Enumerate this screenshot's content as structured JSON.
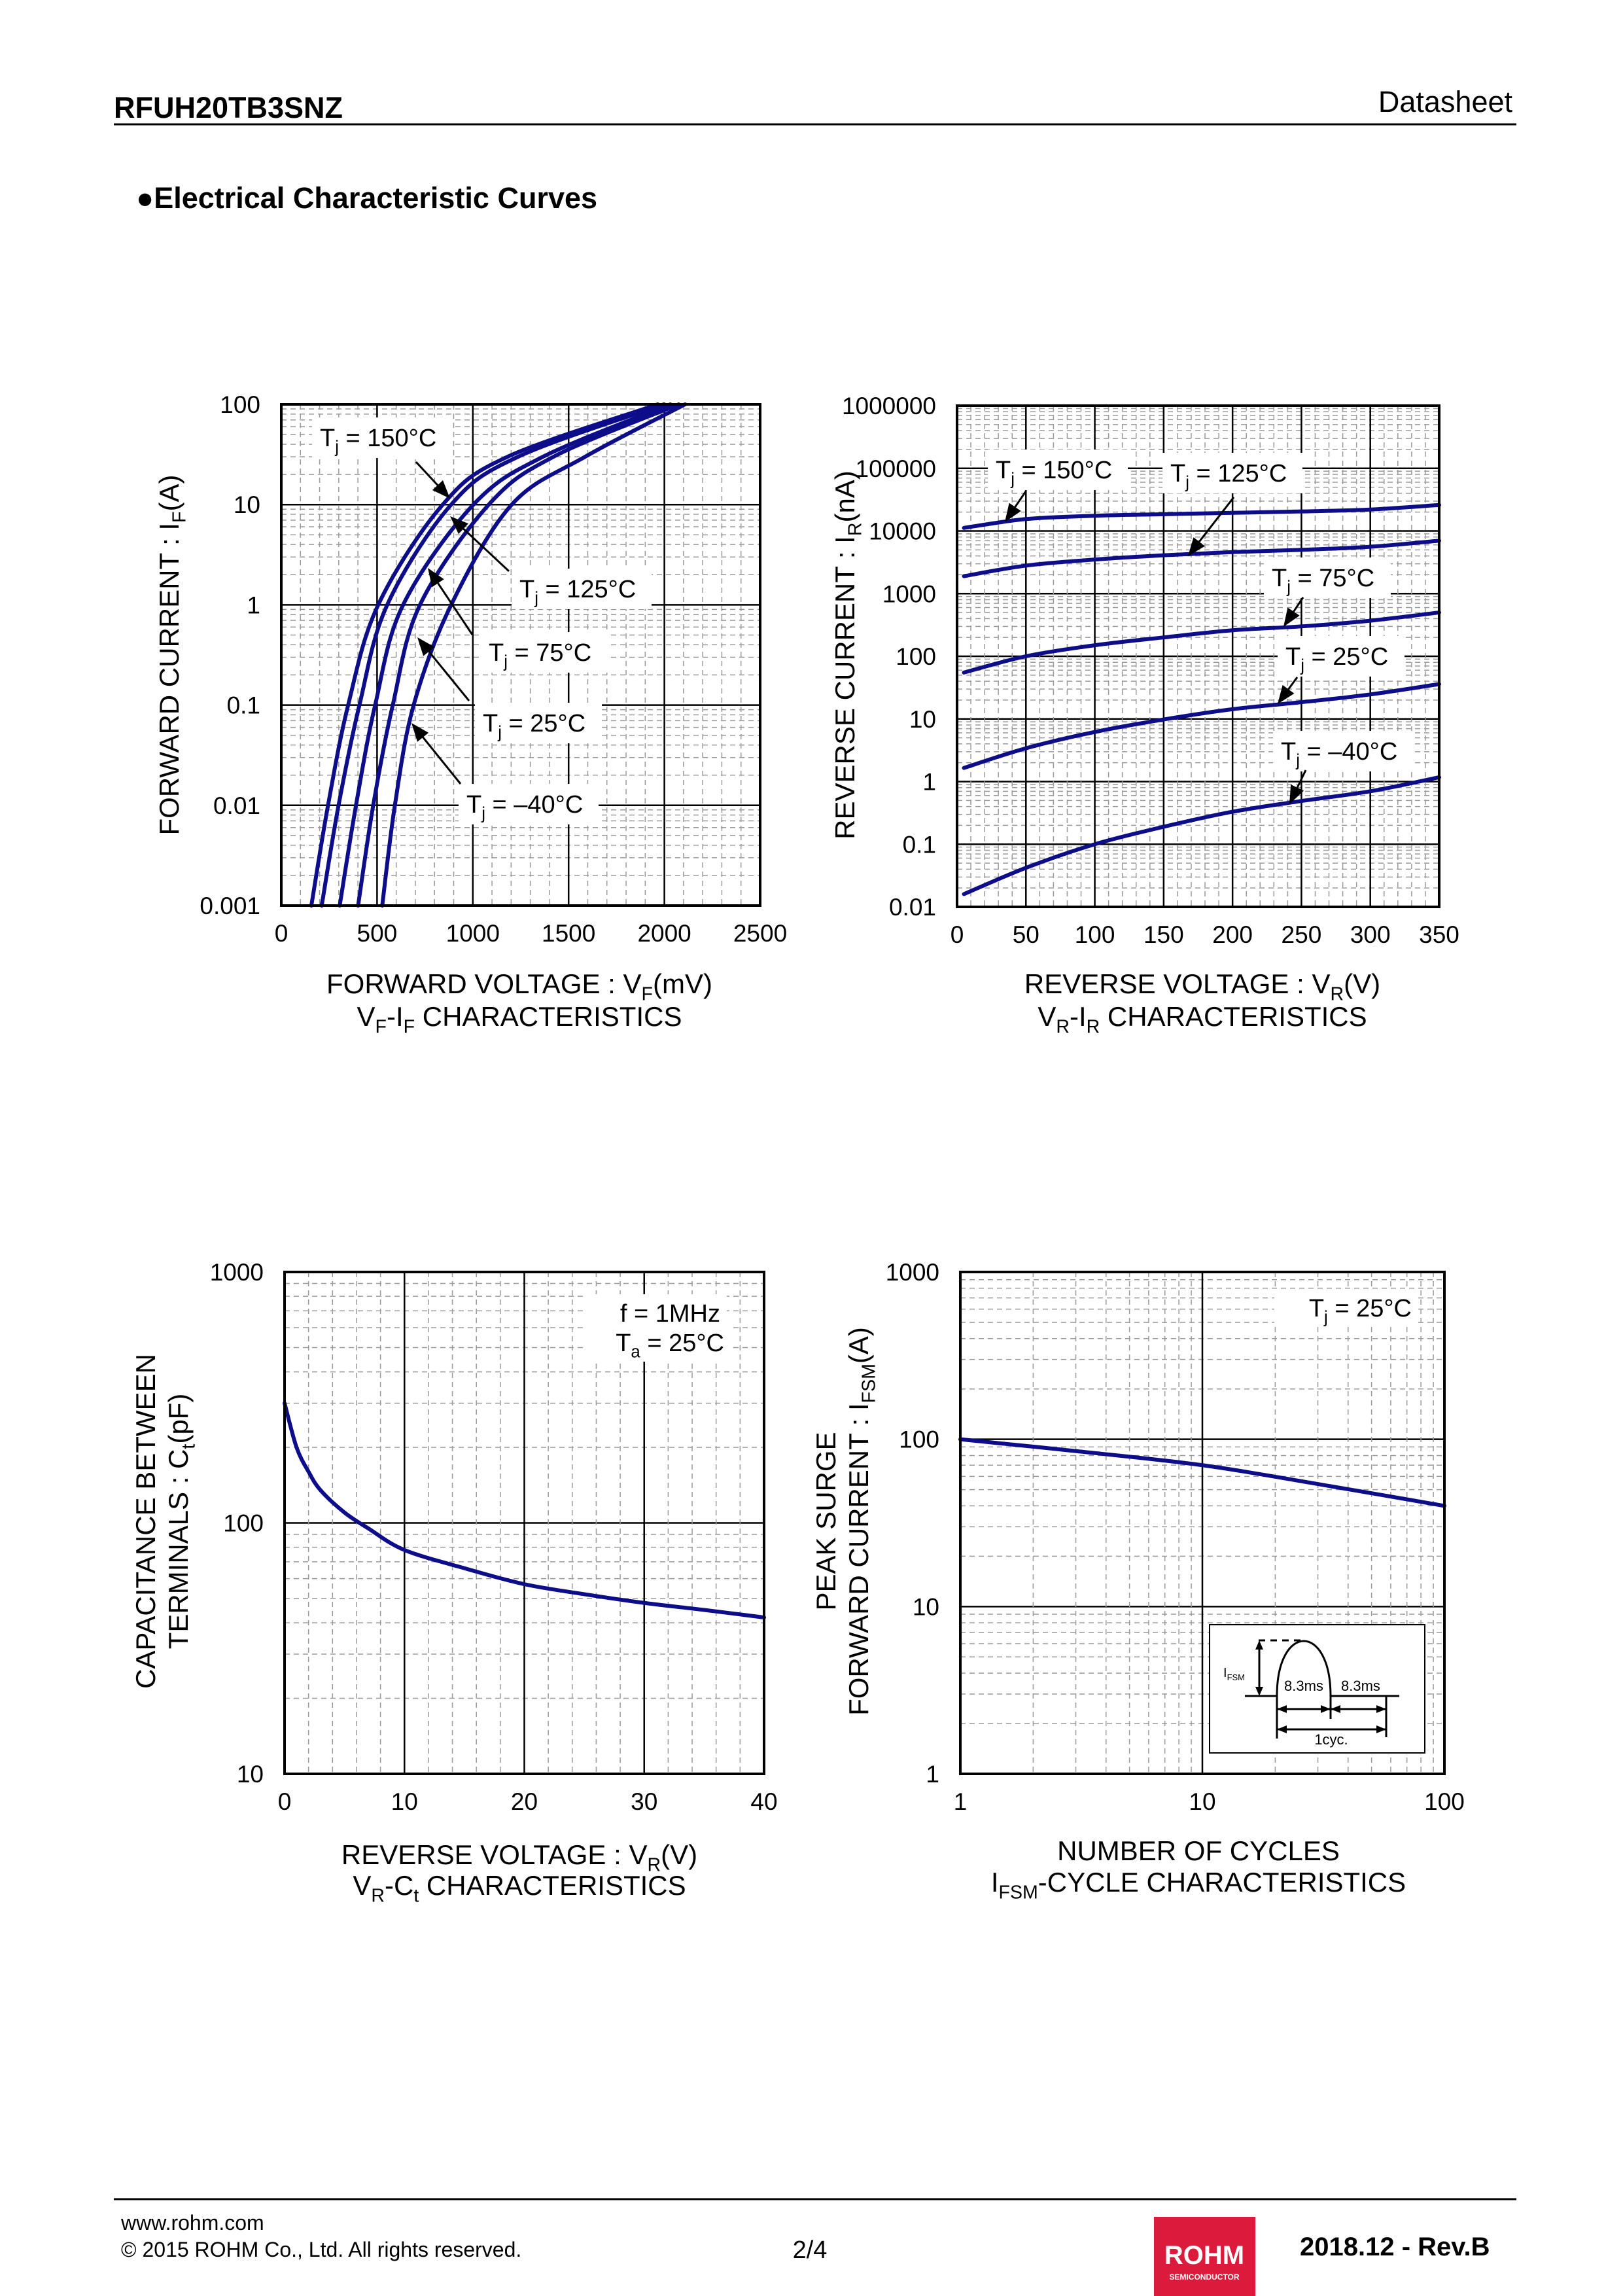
{
  "header": {
    "part_number": "RFUH20TB3SNZ",
    "doc_type": "Datasheet"
  },
  "section": {
    "bullet": "●",
    "title": "Electrical Characteristic Curves"
  },
  "colors": {
    "curve": "#0D0D8A",
    "grid": "#000000",
    "minor_grid": "#9a9a9a",
    "logo": "#DC1A3C"
  },
  "chart_data": [
    {
      "id": "vf-if",
      "type": "line",
      "title_segments": [
        {
          "t": "V"
        },
        {
          "t": "F",
          "sub": true
        },
        {
          "t": "-I"
        },
        {
          "t": "F",
          "sub": true
        },
        {
          "t": " CHARACTERISTICS"
        }
      ],
      "xlabel_segments": [
        {
          "t": "FORWARD VOLTAGE : V"
        },
        {
          "t": "F",
          "sub": true
        },
        {
          "t": "(mV)"
        }
      ],
      "ylabel_lines": [
        [
          {
            "t": "FORWARD CURRENT : I"
          },
          {
            "t": "F",
            "sub": true
          },
          {
            "t": "(A)"
          }
        ]
      ],
      "x_scale": "linear",
      "xlim": [
        0,
        2500
      ],
      "xticks": [
        0,
        500,
        1000,
        1500,
        2000,
        2500
      ],
      "x_minor_step": 100,
      "xtick_labels": [
        "0",
        "500",
        "1000",
        "1500",
        "2000",
        "2500"
      ],
      "y_scale": "log",
      "ylim": [
        0.001,
        100
      ],
      "ytick_labels": [
        "0.001",
        "0.01",
        "0.1",
        "1",
        "10",
        "100"
      ],
      "grid": true,
      "series": [
        {
          "label_segments": [
            {
              "t": "T"
            },
            {
              "t": "j",
              "sub": true
            },
            {
              "t": " = 150°C"
            }
          ],
          "x": [
            157,
            244,
            349,
            506,
            843,
            1181,
            1966
          ],
          "y": [
            0.001,
            0.01,
            0.1,
            1,
            10,
            30,
            100
          ]
        },
        {
          "label_segments": [
            {
              "t": "T"
            },
            {
              "t": "j",
              "sub": true
            },
            {
              "t": " = 125°C"
            }
          ],
          "x": [
            211,
            299,
            408,
            553,
            887,
            1236,
            1998
          ],
          "y": [
            0.001,
            0.01,
            0.1,
            1,
            10,
            30,
            100
          ]
        },
        {
          "label_segments": [
            {
              "t": "T"
            },
            {
              "t": "j",
              "sub": true
            },
            {
              "t": " = 75°C"
            }
          ],
          "x": [
            305,
            390,
            490,
            636,
            1003,
            1366,
            2031
          ],
          "y": [
            0.001,
            0.01,
            0.1,
            1,
            10,
            30,
            100
          ]
        },
        {
          "label_segments": [
            {
              "t": "T"
            },
            {
              "t": "j",
              "sub": true
            },
            {
              "t": " = 25°C"
            }
          ],
          "x": [
            401,
            480,
            582,
            724,
            1083,
            1421,
            2075
          ],
          "y": [
            0.001,
            0.01,
            0.1,
            1,
            10,
            30,
            100
          ]
        },
        {
          "label_segments": [
            {
              "t": "T"
            },
            {
              "t": "j",
              "sub": true
            },
            {
              "t": " = –40°C"
            }
          ],
          "x": [
            527,
            593,
            691,
            887,
            1203,
            1586,
            2108
          ],
          "y": [
            0.001,
            0.01,
            0.1,
            1,
            10,
            30,
            100
          ]
        }
      ]
    },
    {
      "id": "vr-ir",
      "type": "line",
      "title_segments": [
        {
          "t": "V"
        },
        {
          "t": "R",
          "sub": true
        },
        {
          "t": "-I"
        },
        {
          "t": "R",
          "sub": true
        },
        {
          "t": " CHARACTERISTICS"
        }
      ],
      "xlabel_segments": [
        {
          "t": "REVERSE VOLTAGE : V"
        },
        {
          "t": "R",
          "sub": true
        },
        {
          "t": "(V)"
        }
      ],
      "ylabel_lines": [
        [
          {
            "t": "REVERSE CURRENT : I"
          },
          {
            "t": "R",
            "sub": true
          },
          {
            "t": "(nA)"
          }
        ]
      ],
      "x_scale": "linear",
      "xlim": [
        0,
        350
      ],
      "xticks": [
        0,
        50,
        100,
        150,
        200,
        250,
        300,
        350
      ],
      "x_minor_step": 10,
      "xtick_labels": [
        "0",
        "50",
        "100",
        "150",
        "200",
        "250",
        "300",
        "350"
      ],
      "y_scale": "log",
      "ylim": [
        0.01,
        1000000
      ],
      "ytick_labels": [
        "0.01",
        "0.1",
        "1",
        "10",
        "100",
        "1000",
        "10000",
        "100000",
        "1000000"
      ],
      "grid": true,
      "series": [
        {
          "label_segments": [
            {
              "t": "T"
            },
            {
              "t": "j",
              "sub": true
            },
            {
              "t": " = 150°C"
            }
          ],
          "x": [
            5,
            50,
            100,
            150,
            200,
            250,
            300,
            350
          ],
          "y": [
            11200,
            15500,
            17500,
            18500,
            19500,
            20500,
            22000,
            26000
          ]
        },
        {
          "label_segments": [
            {
              "t": "T"
            },
            {
              "t": "j",
              "sub": true
            },
            {
              "t": " = 125°C"
            }
          ],
          "x": [
            5,
            50,
            100,
            150,
            200,
            250,
            300,
            350
          ],
          "y": [
            1900,
            2800,
            3500,
            4100,
            4600,
            5000,
            5600,
            7000
          ]
        },
        {
          "label_segments": [
            {
              "t": "T"
            },
            {
              "t": "j",
              "sub": true
            },
            {
              "t": " = 75°C"
            }
          ],
          "x": [
            5,
            50,
            100,
            150,
            200,
            250,
            300,
            350
          ],
          "y": [
            55,
            100,
            150,
            200,
            260,
            300,
            370,
            500
          ]
        },
        {
          "label_segments": [
            {
              "t": "T"
            },
            {
              "t": "j",
              "sub": true
            },
            {
              "t": " = 25°C"
            }
          ],
          "x": [
            5,
            50,
            100,
            150,
            200,
            250,
            300,
            350
          ],
          "y": [
            1.65,
            3.4,
            6.2,
            9.8,
            14.3,
            18.5,
            24.6,
            36
          ]
        },
        {
          "label_segments": [
            {
              "t": "T"
            },
            {
              "t": "j",
              "sub": true
            },
            {
              "t": " = –40°C"
            }
          ],
          "x": [
            5,
            50,
            100,
            150,
            200,
            250,
            300,
            350
          ],
          "y": [
            0.016,
            0.042,
            0.1,
            0.19,
            0.33,
            0.49,
            0.7,
            1.17
          ]
        }
      ]
    },
    {
      "id": "vr-ct",
      "type": "line",
      "title_segments": [
        {
          "t": "V"
        },
        {
          "t": "R",
          "sub": true
        },
        {
          "t": "-C"
        },
        {
          "t": "t",
          "sub": true
        },
        {
          "t": " CHARACTERISTICS"
        }
      ],
      "xlabel_segments": [
        {
          "t": "REVERSE VOLTAGE : V"
        },
        {
          "t": "R",
          "sub": true
        },
        {
          "t": "(V)"
        }
      ],
      "ylabel_lines": [
        [
          {
            "t": "CAPACITANCE BETWEEN"
          }
        ],
        [
          {
            "t": "TERMINALS : C"
          },
          {
            "t": "t",
            "sub": true
          },
          {
            "t": "(pF)"
          }
        ]
      ],
      "x_scale": "linear",
      "xlim": [
        0,
        40
      ],
      "xticks": [
        0,
        10,
        20,
        30,
        40
      ],
      "x_minor_step": 2,
      "xtick_labels": [
        "0",
        "10",
        "20",
        "30",
        "40"
      ],
      "y_scale": "log",
      "ylim": [
        10,
        1000
      ],
      "ytick_labels": [
        "10",
        "100",
        "1000"
      ],
      "grid": true,
      "annotations": [
        [
          {
            "t": "f = 1MHz"
          }
        ],
        [
          {
            "t": "T"
          },
          {
            "t": "a",
            "sub": true
          },
          {
            "t": " = 25°C"
          }
        ]
      ],
      "series": [
        {
          "x": [
            0,
            1,
            2,
            3,
            5,
            7,
            10,
            15,
            20,
            25,
            30,
            35,
            40
          ],
          "y": [
            300,
            200,
            160,
            135,
            110,
            95,
            78,
            66,
            57,
            52,
            48,
            45,
            42
          ]
        }
      ]
    },
    {
      "id": "ifsm-cycle",
      "type": "line",
      "title_segments": [
        {
          "t": "I"
        },
        {
          "t": "FSM",
          "sub": true
        },
        {
          "t": "-CYCLE CHARACTERISTICS"
        }
      ],
      "xlabel_segments": [
        {
          "t": "NUMBER OF CYCLES"
        }
      ],
      "ylabel_lines": [
        [
          {
            "t": "PEAK SURGE"
          }
        ],
        [
          {
            "t": "FORWARD CURRENT : I"
          },
          {
            "t": "FSM",
            "sub": true
          },
          {
            "t": "(A)"
          }
        ]
      ],
      "x_scale": "log",
      "xlim": [
        1,
        100
      ],
      "xtick_labels": [
        "1",
        "10",
        "100"
      ],
      "y_scale": "log",
      "ylim": [
        1,
        1000
      ],
      "ytick_labels": [
        "1",
        "10",
        "100",
        "1000"
      ],
      "grid": true,
      "annotations": [
        [
          {
            "t": "T"
          },
          {
            "t": "j",
            "sub": true
          },
          {
            "t": " = 25°C"
          }
        ]
      ],
      "inset": {
        "peak_label": "I",
        "peak_sub": "FSM",
        "half_period": "8.3ms",
        "off_period": "8.3ms",
        "cycle": "1cyc."
      },
      "series": [
        {
          "x": [
            1,
            3,
            10,
            30,
            100
          ],
          "y": [
            100,
            85,
            70,
            54,
            40
          ]
        }
      ]
    }
  ],
  "footer": {
    "website": "www.rohm.com",
    "copyright": "© 2015  ROHM Co., Ltd. All rights reserved.",
    "page": "2/4",
    "logo_text": "ROHM",
    "logo_subtext": "SEMICONDUCTOR",
    "revision": "2018.12 -  Rev.B"
  }
}
